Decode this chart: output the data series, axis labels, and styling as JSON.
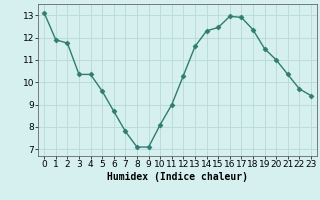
{
  "x": [
    0,
    1,
    2,
    3,
    4,
    5,
    6,
    7,
    8,
    9,
    10,
    11,
    12,
    13,
    14,
    15,
    16,
    17,
    18,
    19,
    20,
    23
  ],
  "y": [
    13.1,
    11.9,
    11.75,
    10.35,
    10.35,
    9.6,
    8.7,
    7.8,
    7.1,
    7.1,
    8.1,
    9.0,
    10.3,
    11.6,
    12.3,
    12.45,
    12.95,
    12.9,
    12.35,
    11.5,
    11.0,
    9.4
  ],
  "x_all": [
    0,
    1,
    2,
    3,
    4,
    5,
    6,
    7,
    8,
    9,
    10,
    11,
    12,
    13,
    14,
    15,
    16,
    17,
    18,
    19,
    20,
    21,
    22,
    23
  ],
  "y_all": [
    13.1,
    11.9,
    11.75,
    10.35,
    10.35,
    9.6,
    8.7,
    7.8,
    7.1,
    7.1,
    8.1,
    9.0,
    10.3,
    11.6,
    12.3,
    12.45,
    12.95,
    12.9,
    12.35,
    11.5,
    11.0,
    10.35,
    9.7,
    9.4
  ],
  "line_color": "#2E7D6E",
  "marker": "D",
  "marker_size": 2.5,
  "bg_color": "#D6F0F0",
  "grid_color": "#B8D8D8",
  "xlabel": "Humidex (Indice chaleur)",
  "xlim": [
    -0.5,
    23.5
  ],
  "ylim": [
    6.7,
    13.5
  ],
  "yticks": [
    7,
    8,
    9,
    10,
    11,
    12,
    13
  ],
  "xticks": [
    0,
    1,
    2,
    3,
    4,
    5,
    6,
    7,
    8,
    9,
    10,
    11,
    12,
    13,
    14,
    15,
    16,
    17,
    18,
    19,
    20,
    21,
    22,
    23
  ],
  "xlabel_fontsize": 7,
  "tick_fontsize": 6.5
}
